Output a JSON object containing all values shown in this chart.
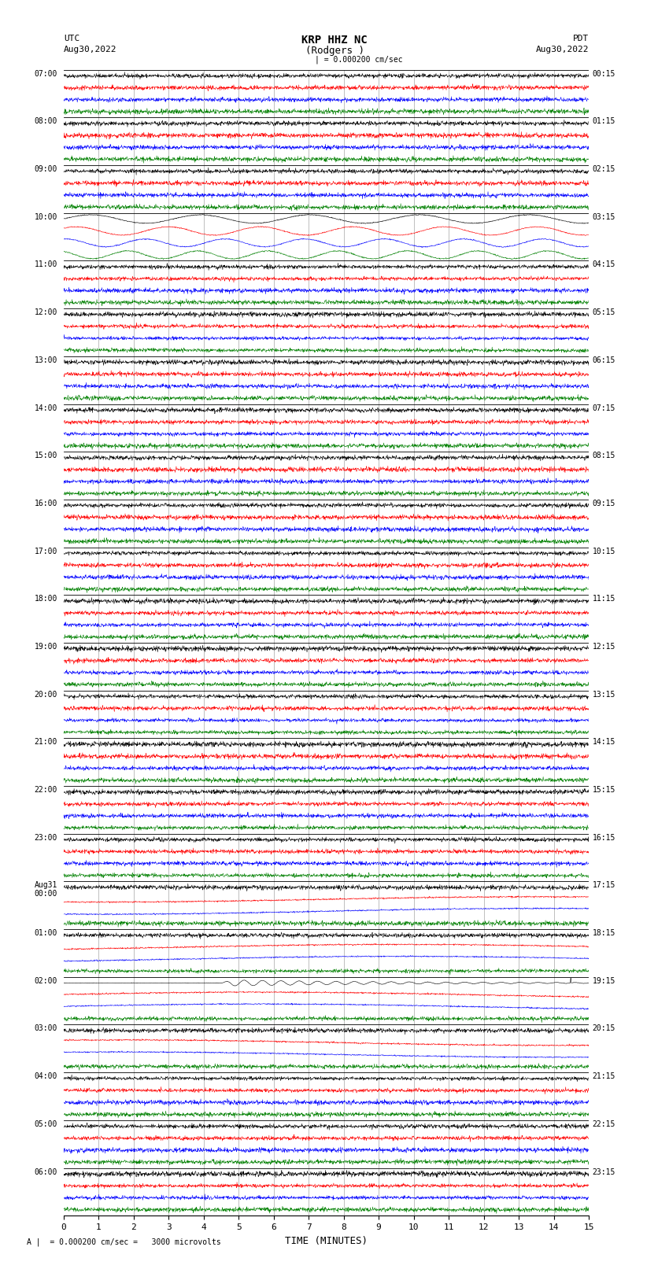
{
  "title_line1": "KRP HHZ NC",
  "title_line2": "(Rodgers )",
  "scale_label": "| = 0.000200 cm/sec",
  "bottom_label": "A |  = 0.000200 cm/sec =   3000 microvolts",
  "utc_header": "UTC",
  "utc_date": "Aug30,2022",
  "pdt_header": "PDT",
  "pdt_date": "Aug30,2022",
  "xlabel": "TIME (MINUTES)",
  "xlim": [
    0,
    15
  ],
  "xticks": [
    0,
    1,
    2,
    3,
    4,
    5,
    6,
    7,
    8,
    9,
    10,
    11,
    12,
    13,
    14,
    15
  ],
  "bg_color": "#ffffff",
  "trace_colors": [
    "black",
    "red",
    "blue",
    "green"
  ],
  "hour_groups": 23,
  "traces_per_group": 4,
  "n_cols": 1800,
  "left_hour_labels": [
    "07:00",
    "08:00",
    "09:00",
    "10:00",
    "11:00",
    "12:00",
    "13:00",
    "14:00",
    "15:00",
    "16:00",
    "17:00",
    "18:00",
    "19:00",
    "20:00",
    "21:00",
    "22:00",
    "23:00",
    "Aug31\n00:00",
    "01:00",
    "02:00",
    "03:00",
    "04:00",
    "05:00",
    "06:00"
  ],
  "right_hour_labels": [
    "00:15",
    "01:15",
    "02:15",
    "03:15",
    "04:15",
    "05:15",
    "06:15",
    "07:15",
    "08:15",
    "09:15",
    "10:15",
    "11:15",
    "12:15",
    "13:15",
    "14:15",
    "15:15",
    "16:15",
    "17:15",
    "18:15",
    "19:15",
    "20:15",
    "21:15",
    "22:15",
    "23:15"
  ],
  "noise_seed": 42,
  "large_osc_group": 3,
  "earthquake_group": 19,
  "earthquake_color_idx": 0,
  "slow_drift_groups": [
    17,
    18,
    19,
    20
  ],
  "vertical_lines_at_minutes": [
    1,
    2,
    3,
    4,
    5,
    6,
    7,
    8,
    9,
    10,
    11,
    12,
    13,
    14
  ]
}
